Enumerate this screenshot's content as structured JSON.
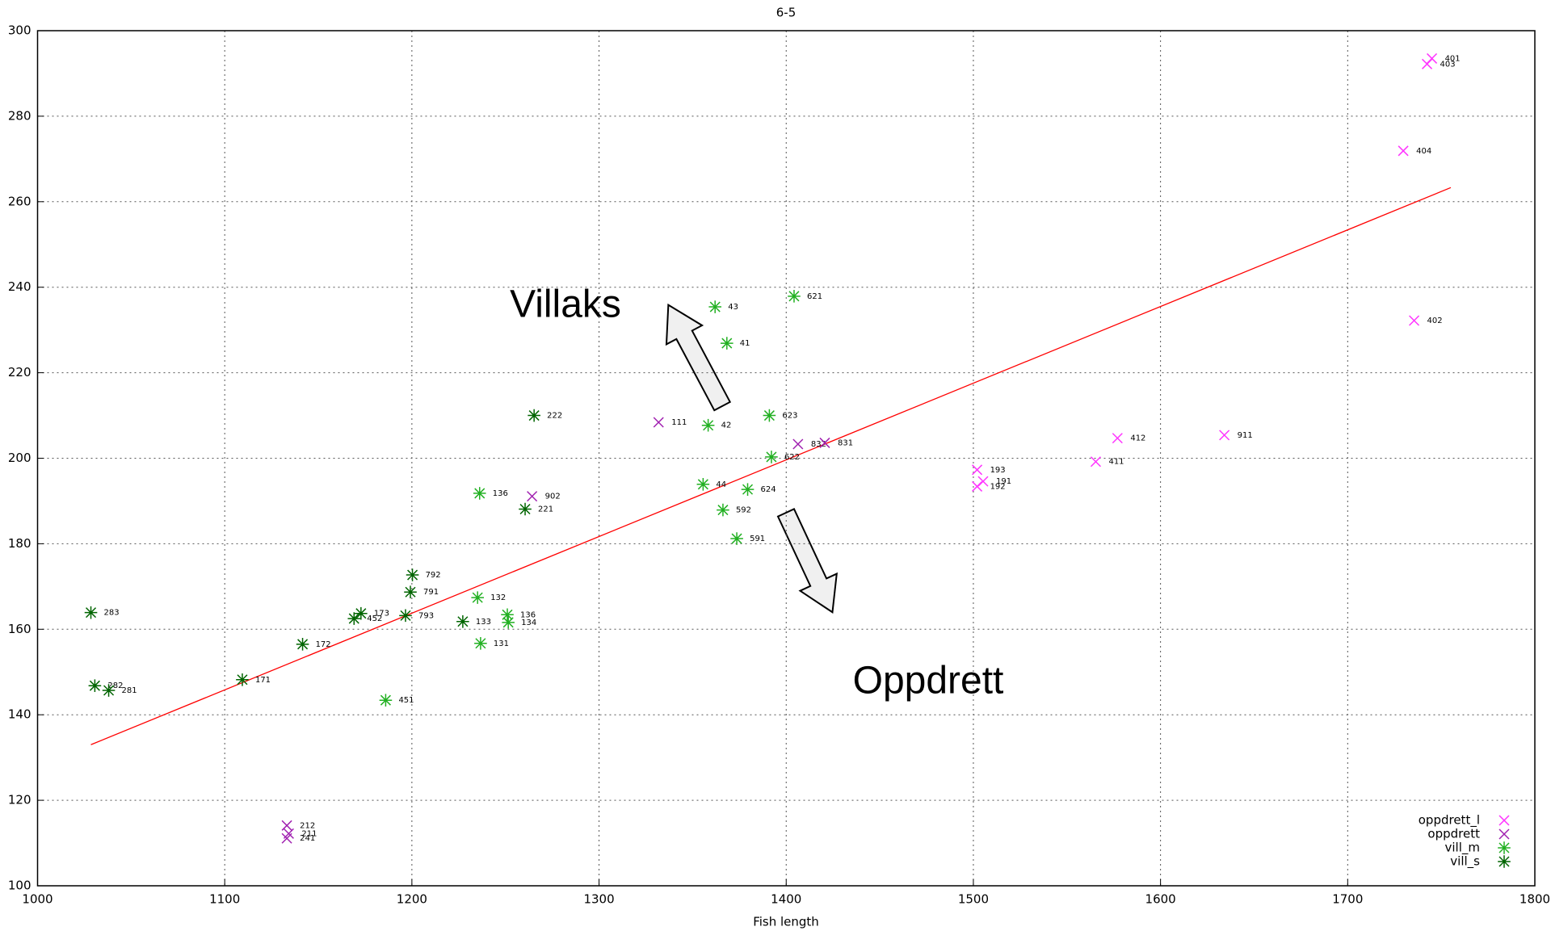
{
  "chart_data": {
    "type": "scatter",
    "title": "6-5",
    "x_label": "Fish length",
    "xlim": [
      1000,
      1800
    ],
    "xticks": [
      1000,
      1100,
      1200,
      1300,
      1400,
      1500,
      1600,
      1700,
      1800
    ],
    "ylim": [
      100,
      300
    ],
    "yticks": [
      100,
      120,
      140,
      160,
      180,
      200,
      220,
      240,
      260,
      280,
      300
    ],
    "grid": true,
    "legend": "lower right",
    "annotations": [
      "Villaks",
      "Oppdrett"
    ],
    "trend_line": {
      "color": "#ff0000",
      "x": [
        1028.5,
        1755.1
      ],
      "y": [
        133.0,
        263.3
      ]
    },
    "series": [
      {
        "name": "oppdrett_l",
        "color": "#ff33ff",
        "marker": "x",
        "x": [
          1745.0,
          1742.4,
          1729.7,
          1735.5,
          1577.0,
          1634.1,
          1565.4,
          1502.0,
          1505.2,
          1502.0
        ],
        "values": [
          293.5,
          292.2,
          271.9,
          232.2,
          204.7,
          205.4,
          199.2,
          197.3,
          194.6,
          193.4
        ],
        "labels": [
          "401",
          "403",
          "404",
          "402",
          "412",
          "911",
          "411",
          "193",
          "191",
          "192"
        ]
      },
      {
        "name": "oppdrett",
        "color": "#a020b0",
        "marker": "x",
        "x": [
          1331.8,
          1264.2,
          1406.3,
          1420.6,
          1133.2,
          1134.2,
          1133.2
        ],
        "values": [
          208.4,
          191.1,
          203.3,
          203.6,
          114.1,
          112.2,
          111.1
        ],
        "labels": [
          "111",
          "902",
          "832",
          "831",
          "212",
          "211",
          "241"
        ]
      },
      {
        "name": "vill_m",
        "color": "#22b022",
        "marker": "asterisk",
        "x": [
          1362.0,
          1404.2,
          1368.3,
          1391.0,
          1392.1,
          1358.3,
          1355.6,
          1379.4,
          1366.2,
          1373.6,
          1236.2,
          1235.1,
          1236.7,
          1251.0,
          1251.5,
          1186.0
        ],
        "values": [
          235.4,
          237.9,
          226.9,
          210.0,
          200.3,
          207.7,
          193.9,
          192.7,
          187.9,
          181.2,
          191.8,
          167.4,
          156.7,
          163.4,
          161.6,
          143.4
        ],
        "labels": [
          "43",
          "621",
          "41",
          "623",
          "622",
          "42",
          "44",
          "624",
          "592",
          "591",
          "136",
          "132",
          "131",
          "136",
          "134",
          "451"
        ]
      },
      {
        "name": "vill_s",
        "color": "#006400",
        "marker": "asterisk",
        "x": [
          1265.3,
          1260.5,
          1028.5,
          1030.6,
          1038.0,
          1109.4,
          1141.6,
          1172.8,
          1169.1,
          1200.3,
          1199.2,
          1196.6,
          1227.2
        ],
        "values": [
          210.0,
          188.1,
          163.9,
          146.8,
          145.7,
          148.2,
          156.5,
          163.7,
          162.5,
          172.7,
          168.7,
          163.2,
          161.8
        ],
        "labels": [
          "222",
          "221",
          "283",
          "282",
          "281",
          "171",
          "172",
          "173",
          "452",
          "792",
          "791",
          "793",
          "133"
        ]
      }
    ]
  }
}
